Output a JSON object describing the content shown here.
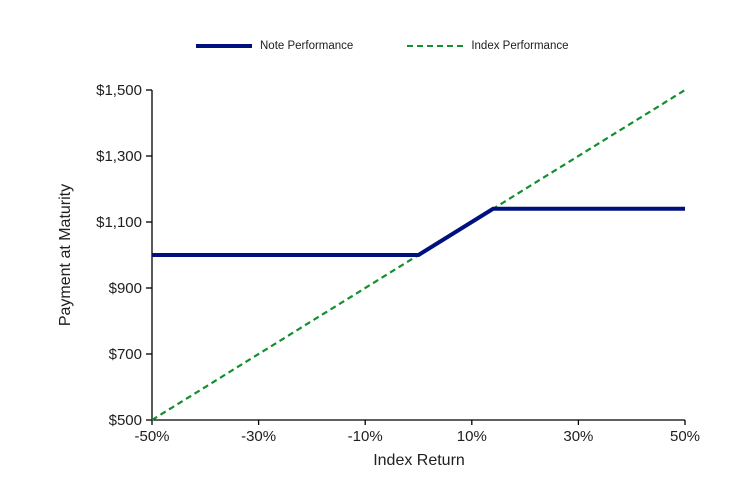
{
  "page": {
    "background": "#ffffff"
  },
  "chart_data": {
    "type": "line",
    "title": "",
    "xlabel": "Index Return",
    "ylabel": "Payment at Maturity",
    "xlim": [
      -50,
      50
    ],
    "ylim": [
      500,
      1500
    ],
    "grid": false,
    "legend_position": "top-center",
    "axis_color": "#000000",
    "text_color": "#202020",
    "x_ticks": [
      {
        "value": -50,
        "label": "-50%"
      },
      {
        "value": -30,
        "label": "-30%"
      },
      {
        "value": -10,
        "label": "-10%"
      },
      {
        "value": 10,
        "label": "10%"
      },
      {
        "value": 30,
        "label": "30%"
      },
      {
        "value": 50,
        "label": "50%"
      }
    ],
    "y_ticks": [
      {
        "value": 500,
        "label": "$500"
      },
      {
        "value": 700,
        "label": "$700"
      },
      {
        "value": 900,
        "label": "$900"
      },
      {
        "value": 1100,
        "label": "$1,100"
      },
      {
        "value": 1300,
        "label": "$1,300"
      },
      {
        "value": 1500,
        "label": "$1,500"
      }
    ],
    "series": [
      {
        "name": "Note Performance",
        "color": "#00107e",
        "style": "solid",
        "stroke_width": 4,
        "points": [
          [
            -50,
            1000
          ],
          [
            0,
            1000
          ],
          [
            14,
            1140
          ],
          [
            50,
            1140
          ]
        ]
      },
      {
        "name": "Index Performance",
        "color": "#128f2e",
        "style": "dashed",
        "stroke_width": 2.2,
        "points": [
          [
            -50,
            500
          ],
          [
            50,
            1500
          ]
        ]
      }
    ]
  }
}
